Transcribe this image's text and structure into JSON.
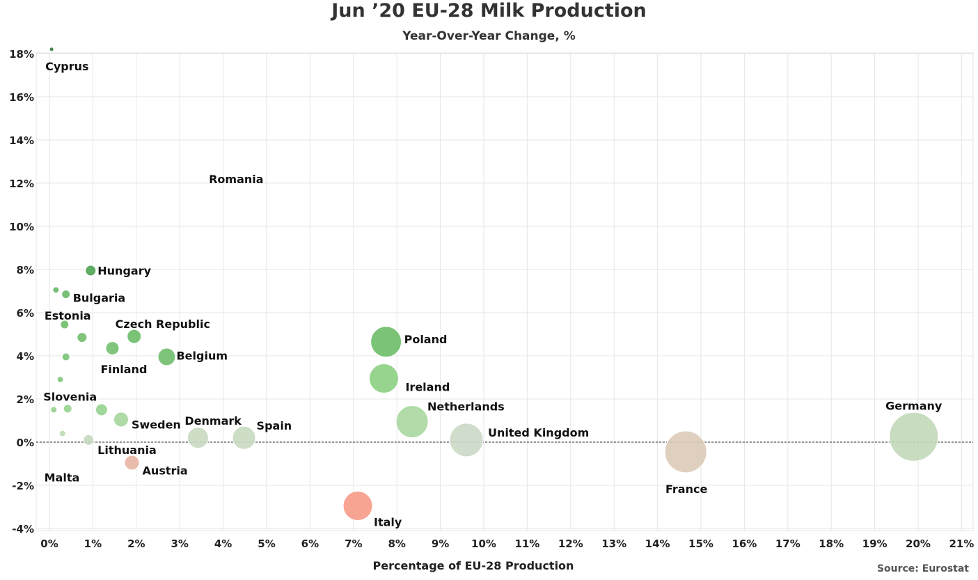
{
  "chart_data": {
    "type": "scatter",
    "title": "Jun ’20 EU-28 Milk Production",
    "subtitle": "Year-Over-Year Change, %",
    "xlabel": "Percentage of EU-28 Production",
    "ylabel": "",
    "source": "Source: Eurostat",
    "xlim": [
      0,
      21
    ],
    "ylim": [
      -4,
      18
    ],
    "x_ticks": [
      "0%",
      "1%",
      "2%",
      "3%",
      "4%",
      "5%",
      "6%",
      "7%",
      "8%",
      "9%",
      "10%",
      "11%",
      "12%",
      "13%",
      "14%",
      "15%",
      "16%",
      "17%",
      "18%",
      "19%",
      "20%",
      "21%"
    ],
    "y_ticks": [
      "-4%",
      "-2%",
      "0%",
      "2%",
      "4%",
      "6%",
      "8%",
      "10%",
      "12%",
      "14%",
      "16%",
      "18%"
    ],
    "reference_line_y": 0,
    "grid": true,
    "points": [
      {
        "label": "Cyprus",
        "x": 0.05,
        "y": 18.2,
        "color": "#2e7d3b"
      },
      {
        "label": "Romania",
        "x": 4.3,
        "y": 12.2,
        "color": "#ffffff"
      },
      {
        "label": "Hungary",
        "x": 0.95,
        "y": 7.95,
        "color": "#4ea352"
      },
      {
        "label": "",
        "x": 0.15,
        "y": 7.05,
        "color": "#67b866"
      },
      {
        "label": "Bulgaria",
        "x": 0.38,
        "y": 6.85,
        "color": "#67b866"
      },
      {
        "label": "Estonia",
        "x": 0.35,
        "y": 5.45,
        "color": "#6fbd6a"
      },
      {
        "label": "",
        "x": 0.75,
        "y": 4.85,
        "color": "#72bf6d"
      },
      {
        "label": "Czech Republic",
        "x": 1.95,
        "y": 4.9,
        "color": "#6cbc68"
      },
      {
        "label": "Finland",
        "x": 1.45,
        "y": 4.35,
        "color": "#72bf6d"
      },
      {
        "label": "Belgium",
        "x": 2.7,
        "y": 3.95,
        "color": "#70bd6b"
      },
      {
        "label": "",
        "x": 0.38,
        "y": 3.95,
        "color": "#78c273"
      },
      {
        "label": "",
        "x": 0.25,
        "y": 2.9,
        "color": "#84c87e"
      },
      {
        "label": "Poland",
        "x": 7.75,
        "y": 4.65,
        "color": "#6cbc68"
      },
      {
        "label": "Ireland",
        "x": 7.7,
        "y": 2.95,
        "color": "#8ccf82"
      },
      {
        "label": "Slovenia",
        "x": 0.1,
        "y": 1.5,
        "color": "#96d18e"
      },
      {
        "label": "",
        "x": 0.42,
        "y": 1.55,
        "color": "#96d18e"
      },
      {
        "label": "",
        "x": 1.2,
        "y": 1.5,
        "color": "#96d18e"
      },
      {
        "label": "Sweden",
        "x": 1.65,
        "y": 1.05,
        "color": "#a5d69c"
      },
      {
        "label": "Netherlands",
        "x": 8.35,
        "y": 0.95,
        "color": "#a9d8a0"
      },
      {
        "label": "",
        "x": 0.3,
        "y": 0.4,
        "color": "#bcdcb4"
      },
      {
        "label": "Lithuania",
        "x": 0.9,
        "y": 0.1,
        "color": "#c5d9bf"
      },
      {
        "label": "Denmark",
        "x": 3.42,
        "y": 0.2,
        "color": "#c8d9c0"
      },
      {
        "label": "Spain",
        "x": 4.48,
        "y": 0.2,
        "color": "#c8d9c0"
      },
      {
        "label": "United Kingdom",
        "x": 9.6,
        "y": 0.1,
        "color": "#ccd9c6"
      },
      {
        "label": "Germany",
        "x": 19.9,
        "y": 0.25,
        "color": "#c2d8b9"
      },
      {
        "label": "Malta",
        "x": 0.01,
        "y": -1.3,
        "color": "#e0a898"
      },
      {
        "label": "Austria",
        "x": 1.9,
        "y": -0.95,
        "color": "#e8b5a3"
      },
      {
        "label": "France",
        "x": 14.65,
        "y": -0.45,
        "color": "#dccab8"
      },
      {
        "label": "Italy",
        "x": 7.1,
        "y": -2.95,
        "color": "#f79a86"
      }
    ]
  }
}
